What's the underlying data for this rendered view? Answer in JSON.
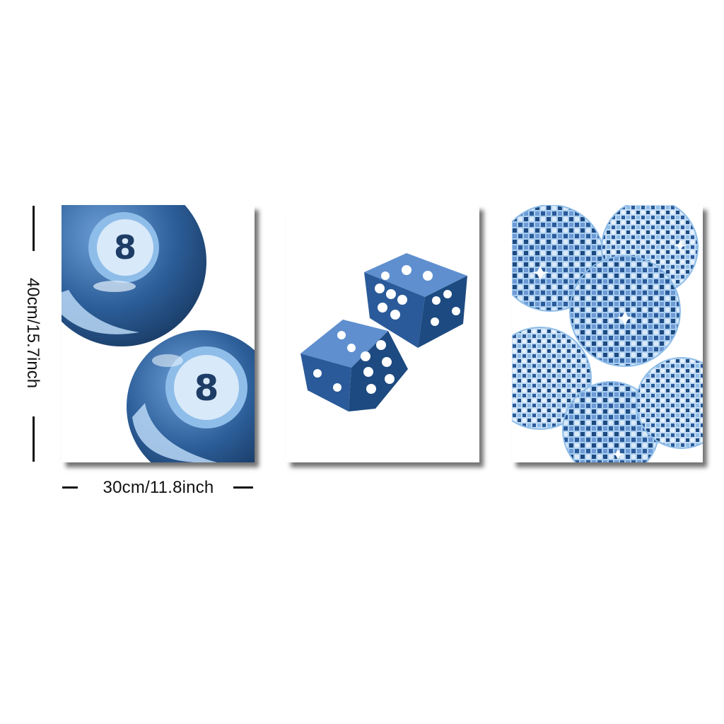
{
  "dimensions": {
    "height_label": "40cm/15.7inch",
    "width_label": "30cm/11.8inch"
  },
  "panels": [
    {
      "subject": "two 8 balls",
      "ball_number": "8"
    },
    {
      "subject": "pair of dice"
    },
    {
      "subject": "disco balls"
    }
  ],
  "colors": {
    "navy": "#1d4a80",
    "mid_blue": "#3d6fb0",
    "light_blue": "#a9cdf0",
    "pale_blue": "#dceaf8",
    "frame_shadow": "#444444"
  }
}
